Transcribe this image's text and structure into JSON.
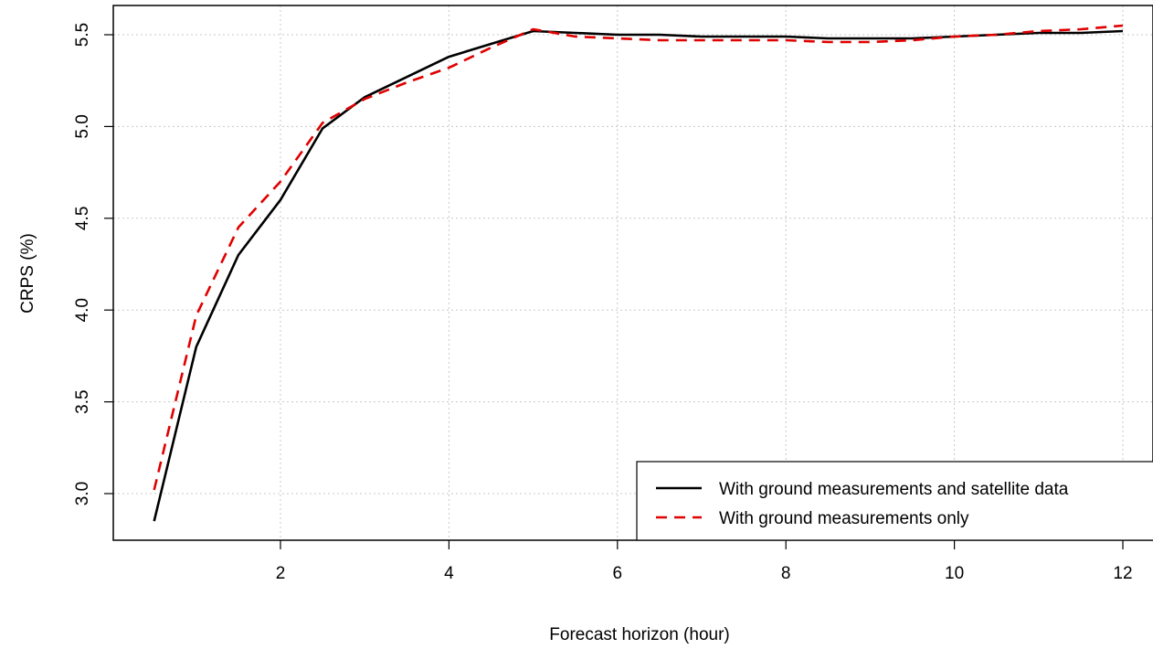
{
  "chart_data": {
    "type": "line",
    "title": "",
    "xlabel": "Forecast horizon (hour)",
    "ylabel": "CRPS (%)",
    "xlim": [
      0.5,
      12
    ],
    "ylim": [
      2.74,
      5.66
    ],
    "xticks": [
      2,
      4,
      6,
      8,
      10,
      12
    ],
    "yticks": [
      3.0,
      3.5,
      4.0,
      4.5,
      5.0,
      5.5
    ],
    "ytick_labels": [
      "3.0",
      "3.5",
      "4.0",
      "4.5",
      "5.0",
      "5.5"
    ],
    "grid": true,
    "legend_position": "bottom-right",
    "x": [
      0.5,
      1,
      1.5,
      2,
      2.5,
      3,
      3.5,
      4,
      4.5,
      5,
      5.5,
      6,
      6.5,
      7,
      7.5,
      8,
      8.5,
      9,
      9.5,
      10,
      10.5,
      11,
      11.5,
      12
    ],
    "series": [
      {
        "name": "With ground measurements and satellite data",
        "color": "#000000",
        "style": "solid",
        "values": [
          2.85,
          3.8,
          4.3,
          4.6,
          4.99,
          5.16,
          5.27,
          5.38,
          5.45,
          5.52,
          5.51,
          5.5,
          5.5,
          5.49,
          5.49,
          5.49,
          5.48,
          5.48,
          5.48,
          5.49,
          5.5,
          5.51,
          5.51,
          5.52
        ]
      },
      {
        "name": "With ground measurements only",
        "color": "#e00000",
        "style": "dashed",
        "values": [
          3.02,
          3.97,
          4.45,
          4.7,
          5.02,
          5.15,
          5.24,
          5.32,
          5.43,
          5.53,
          5.49,
          5.48,
          5.47,
          5.47,
          5.47,
          5.47,
          5.46,
          5.46,
          5.47,
          5.49,
          5.5,
          5.52,
          5.53,
          5.55
        ]
      }
    ]
  }
}
